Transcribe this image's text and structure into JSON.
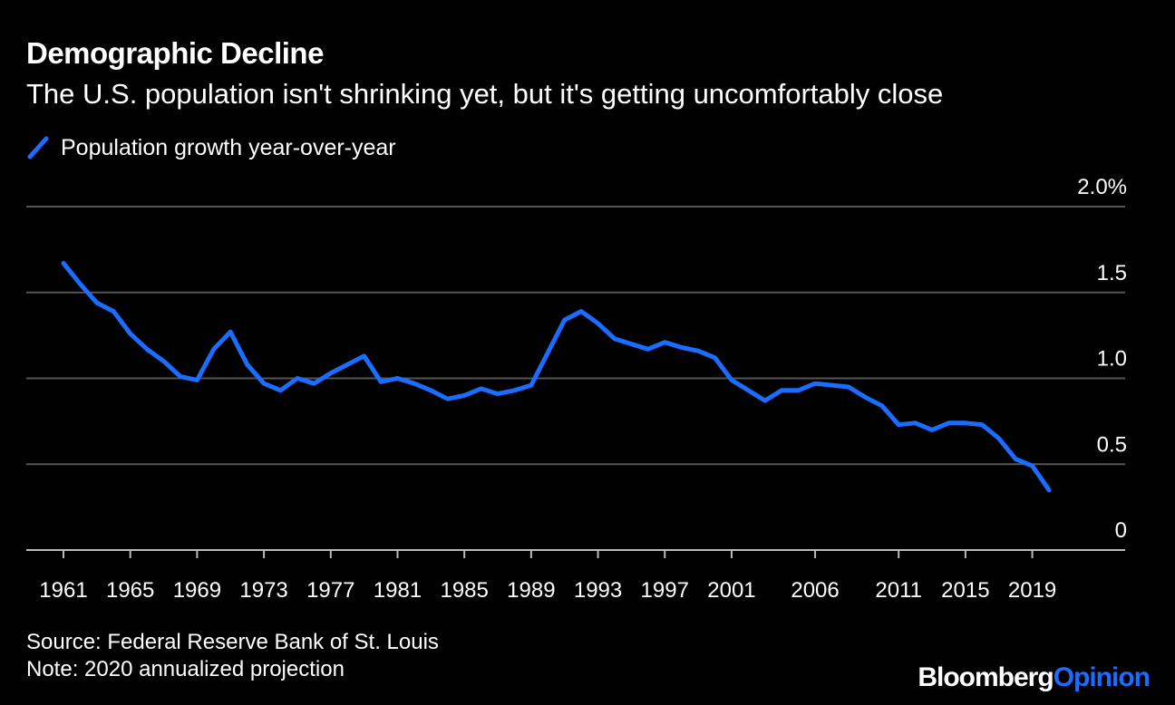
{
  "title": "Demographic Decline",
  "subtitle": "The U.S. population isn't shrinking yet, but it's getting uncomfortably close",
  "source": "Source: Federal Reserve Bank of St. Louis",
  "note": "Note: 2020 annualized projection",
  "logo": {
    "brand": "Bloomberg",
    "section": "Opinion"
  },
  "colors": {
    "background": "#000000",
    "line": "#1a6dff",
    "grid": "#555555",
    "text": "#ffffff"
  },
  "chart_data": {
    "type": "line",
    "grid": true,
    "legend_position": "top-left",
    "ylim": [
      0,
      2.0
    ],
    "y_ticks": [
      {
        "value": 0,
        "label": "0"
      },
      {
        "value": 0.5,
        "label": "0.5"
      },
      {
        "value": 1.0,
        "label": "1.0"
      },
      {
        "value": 1.5,
        "label": "1.5"
      },
      {
        "value": 2.0,
        "label": "2.0%"
      }
    ],
    "xlim": [
      1961,
      2020
    ],
    "x_ticks": [
      1961,
      1965,
      1969,
      1973,
      1977,
      1981,
      1985,
      1989,
      1993,
      1997,
      2001,
      2006,
      2011,
      2015,
      2019
    ],
    "series": [
      {
        "name": "Population growth year-over-year",
        "x": [
          1961,
          1962,
          1963,
          1964,
          1965,
          1966,
          1967,
          1968,
          1969,
          1970,
          1971,
          1972,
          1973,
          1974,
          1975,
          1976,
          1977,
          1978,
          1979,
          1980,
          1981,
          1982,
          1983,
          1984,
          1985,
          1986,
          1987,
          1988,
          1989,
          1990,
          1991,
          1992,
          1993,
          1994,
          1995,
          1996,
          1997,
          1998,
          1999,
          2000,
          2001,
          2002,
          2003,
          2004,
          2005,
          2006,
          2007,
          2008,
          2009,
          2010,
          2011,
          2012,
          2013,
          2014,
          2015,
          2016,
          2017,
          2018,
          2019,
          2020
        ],
        "y": [
          1.67,
          1.55,
          1.44,
          1.39,
          1.26,
          1.17,
          1.1,
          1.01,
          0.99,
          1.17,
          1.27,
          1.08,
          0.97,
          0.93,
          1.0,
          0.97,
          1.03,
          1.08,
          1.13,
          0.98,
          1.0,
          0.97,
          0.93,
          0.88,
          0.9,
          0.94,
          0.91,
          0.93,
          0.96,
          1.15,
          1.34,
          1.39,
          1.32,
          1.23,
          1.2,
          1.17,
          1.21,
          1.18,
          1.16,
          1.12,
          0.99,
          0.93,
          0.87,
          0.93,
          0.93,
          0.97,
          0.96,
          0.95,
          0.89,
          0.84,
          0.73,
          0.74,
          0.7,
          0.74,
          0.74,
          0.73,
          0.65,
          0.53,
          0.49,
          0.35
        ]
      }
    ]
  }
}
